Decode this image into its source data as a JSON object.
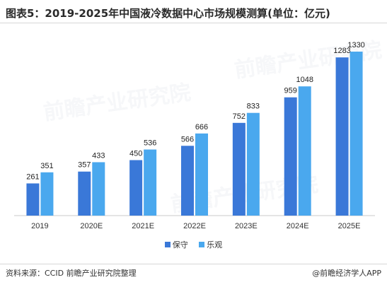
{
  "title": "图表5：2019-2025年中国液冷数据中心市场规模测算(单位：亿元)",
  "watermark": "前瞻产业研究院",
  "footer": {
    "source": "资料来源：CCID 前瞻产业研究院整理",
    "brand": "@前瞻经济学人APP"
  },
  "colors": {
    "series1": "#3a78d8",
    "series2": "#4aa8ee",
    "axis": "#c8c8c8"
  },
  "chart_data": {
    "type": "bar",
    "title": "图表5：2019-2025年中国液冷数据中心市场规模测算(单位：亿元)",
    "categories": [
      "2019",
      "2020E",
      "2021E",
      "2022E",
      "2023E",
      "2024E",
      "2025E"
    ],
    "series": [
      {
        "name": "保守",
        "values": [
          261,
          357,
          450,
          566,
          752,
          959,
          1283
        ]
      },
      {
        "name": "乐观",
        "values": [
          351,
          433,
          536,
          666,
          833,
          1048,
          1330
        ]
      }
    ],
    "ylim": [
      0,
      1400
    ],
    "grid": false,
    "legend": "bottom-center"
  }
}
